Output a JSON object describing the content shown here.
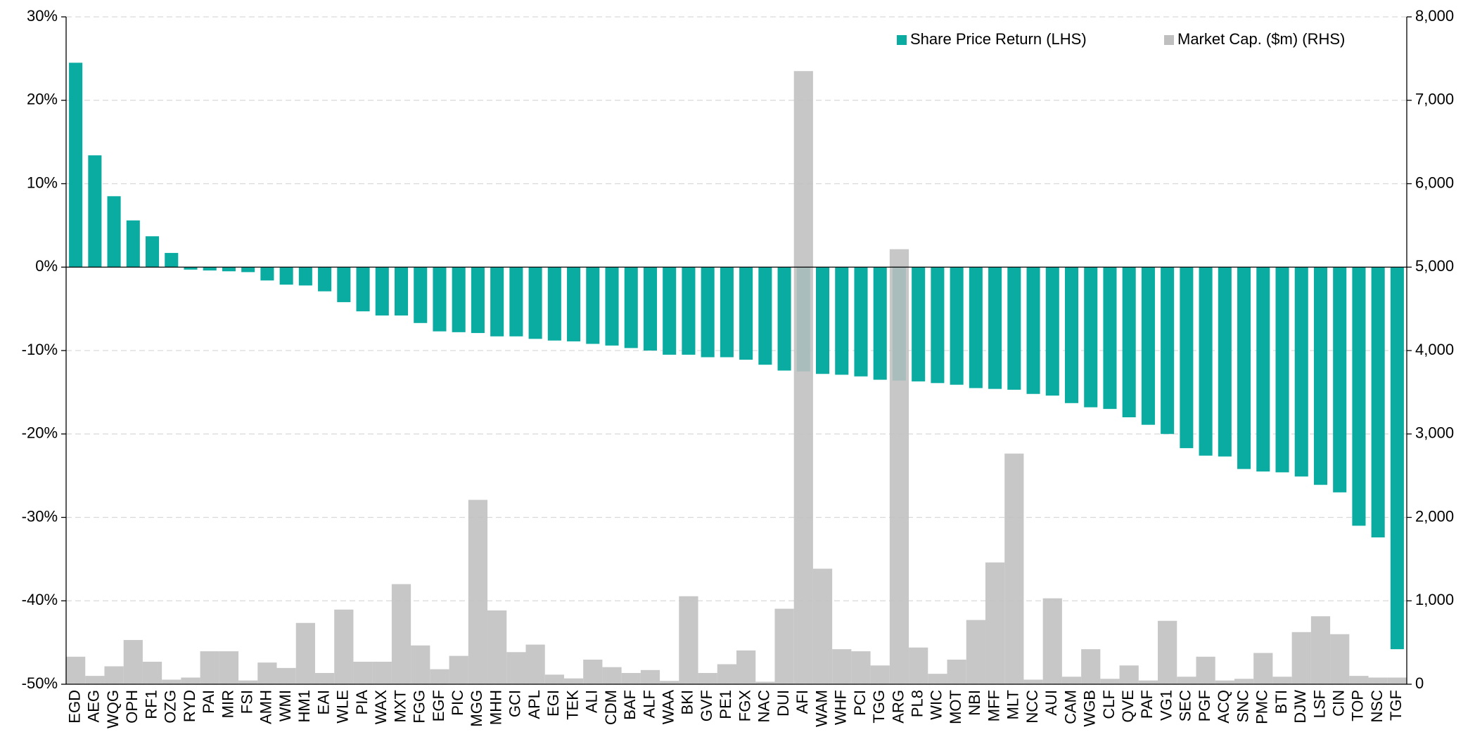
{
  "chart_data": {
    "type": "bar",
    "categories": [
      "EGD",
      "AEG",
      "WQG",
      "OPH",
      "RF1",
      "OZG",
      "RYD",
      "PAI",
      "MIR",
      "FSI",
      "AMH",
      "WMI",
      "HM1",
      "EAI",
      "WLE",
      "PIA",
      "WAX",
      "MXT",
      "FGG",
      "EGF",
      "PIC",
      "MGG",
      "MHH",
      "GCI",
      "APL",
      "EGI",
      "TEK",
      "ALI",
      "CDM",
      "BAF",
      "ALF",
      "WAA",
      "BKI",
      "GVF",
      "PE1",
      "FGX",
      "NAC",
      "DUI",
      "AFI",
      "WAM",
      "WHF",
      "PCI",
      "TGG",
      "ARG",
      "PL8",
      "WIC",
      "MOT",
      "NBI",
      "MFF",
      "MLT",
      "NCC",
      "AUI",
      "CAM",
      "WGB",
      "CLF",
      "QVE",
      "PAF",
      "VG1",
      "SEC",
      "PGF",
      "ACQ",
      "SNC",
      "PMC",
      "BTI",
      "DJW",
      "LSF",
      "CIN",
      "TOP",
      "NSC",
      "TGF"
    ],
    "series": [
      {
        "name": "Share Price Return (LHS)",
        "color": "#0aaca2",
        "values": [
          24.5,
          13.4,
          8.5,
          5.6,
          3.7,
          1.7,
          -0.3,
          -0.4,
          -0.5,
          -0.6,
          -1.6,
          -2.1,
          -2.2,
          -2.9,
          -4.2,
          -5.3,
          -5.8,
          -5.8,
          -6.7,
          -7.7,
          -7.8,
          -7.9,
          -8.3,
          -8.3,
          -8.6,
          -8.8,
          -8.9,
          -9.2,
          -9.4,
          -9.7,
          -10.0,
          -10.5,
          -10.5,
          -10.8,
          -10.8,
          -11.1,
          -11.7,
          -12.4,
          -12.5,
          -12.8,
          -12.9,
          -13.1,
          -13.5,
          -13.6,
          -13.7,
          -13.9,
          -14.1,
          -14.5,
          -14.6,
          -14.7,
          -15.2,
          -15.4,
          -16.3,
          -16.8,
          -17.0,
          -18.0,
          -18.9,
          -20.0,
          -21.7,
          -22.6,
          -22.7,
          -24.2,
          -24.5,
          -24.6,
          -25.1,
          -26.1,
          -27.0,
          -31.0,
          -32.4,
          -45.8
        ]
      },
      {
        "name": "Market Cap. ($m) (RHS)",
        "color": "#bfbfbf",
        "axis": "y2",
        "values": [
          330,
          100,
          215,
          530,
          270,
          55,
          80,
          395,
          395,
          45,
          260,
          195,
          735,
          135,
          895,
          270,
          270,
          1200,
          465,
          180,
          340,
          2210,
          885,
          385,
          475,
          115,
          70,
          295,
          205,
          135,
          170,
          40,
          1055,
          135,
          240,
          405,
          30,
          905,
          7350,
          1385,
          420,
          395,
          225,
          5215,
          440,
          125,
          295,
          770,
          1460,
          2765,
          55,
          1030,
          90,
          420,
          65,
          225,
          45,
          760,
          90,
          330,
          45,
          65,
          375,
          90,
          625,
          815,
          600,
          100,
          80,
          80
        ]
      }
    ],
    "ylim": [
      -50,
      30
    ],
    "yticks": [
      {
        "value": -50,
        "label": "-50%"
      },
      {
        "value": -40,
        "label": "-40%"
      },
      {
        "value": -30,
        "label": "-30%"
      },
      {
        "value": -20,
        "label": "-20%"
      },
      {
        "value": -10,
        "label": "-10%"
      },
      {
        "value": 0,
        "label": "0%"
      },
      {
        "value": 10,
        "label": "10%"
      },
      {
        "value": 20,
        "label": "20%"
      },
      {
        "value": 30,
        "label": "30%"
      }
    ],
    "y2lim": [
      0,
      8000
    ],
    "y2ticks": [
      0,
      {
        "value": 1000,
        "label": "1,000"
      },
      {
        "value": 2000,
        "label": "2,000"
      },
      {
        "value": 3000,
        "label": "3,000"
      },
      {
        "value": 4000,
        "label": "4,000"
      },
      {
        "value": 5000,
        "label": "5,000"
      },
      {
        "value": 6000,
        "label": "6,000"
      },
      {
        "value": 7000,
        "label": "7,000"
      },
      {
        "value": 8000,
        "label": "8,000"
      }
    ],
    "grid": true,
    "legend": "top-right"
  }
}
